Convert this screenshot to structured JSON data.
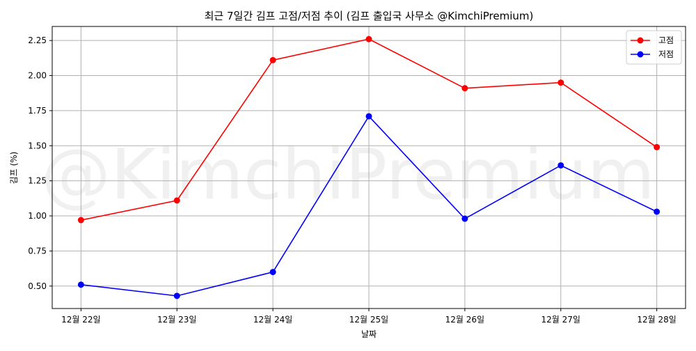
{
  "chart_data": {
    "type": "line",
    "title": "최근 7일간 김프 고점/저점 추이 (김프 출입국 사무소 @KimchiPremium)",
    "xlabel": "날짜",
    "ylabel": "김프 (%)",
    "categories": [
      "12월 22일",
      "12월 23일",
      "12월 24일",
      "12월 25일",
      "12월 26일",
      "12월 27일",
      "12월 28일"
    ],
    "series": [
      {
        "name": "고점",
        "color": "#ff0000",
        "marker": "circle",
        "values": [
          0.97,
          1.11,
          2.11,
          2.26,
          1.91,
          1.95,
          1.49
        ]
      },
      {
        "name": "저점",
        "color": "#0000ff",
        "marker": "circle",
        "values": [
          0.51,
          0.43,
          0.6,
          1.71,
          0.98,
          1.36,
          1.03
        ]
      }
    ],
    "ylim": [
      0.34,
      2.35
    ],
    "yticks": [
      "0.50",
      "0.75",
      "1.00",
      "1.25",
      "1.50",
      "1.75",
      "2.00",
      "2.25"
    ],
    "grid": true,
    "legend_position": "top-right",
    "watermark": "@KimchiPremium"
  }
}
